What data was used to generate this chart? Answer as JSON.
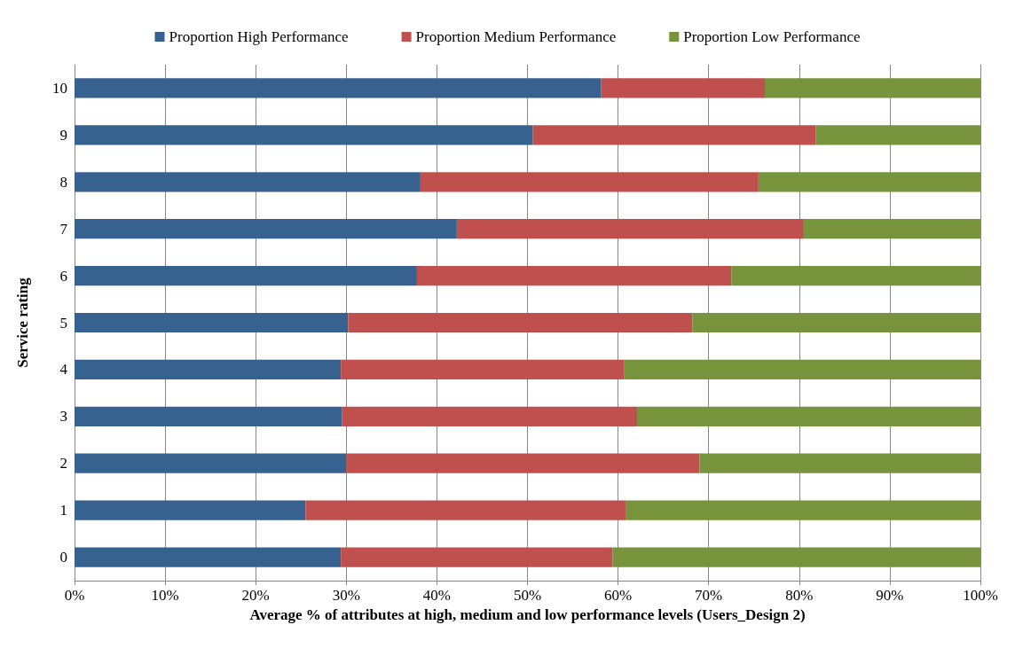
{
  "chart_data": {
    "type": "bar",
    "orientation": "horizontal",
    "stacked": true,
    "xlabel": "Average % of attributes at high, medium and low performance levels (Users_Design 2)",
    "ylabel": "Service rating",
    "categories": [
      "10",
      "9",
      "8",
      "7",
      "6",
      "5",
      "4",
      "3",
      "2",
      "1",
      "0"
    ],
    "series": [
      {
        "name": "Proportion High Performance",
        "color": "#37618f",
        "values": [
          58.1,
          50.6,
          38.1,
          42.2,
          37.8,
          30.2,
          29.4,
          29.5,
          30.0,
          25.5,
          29.4
        ]
      },
      {
        "name": "Proportion Medium Performance",
        "color": "#c0504d",
        "values": [
          18.1,
          31.2,
          37.4,
          38.3,
          34.7,
          38.0,
          31.3,
          32.6,
          39.0,
          35.4,
          30.0
        ]
      },
      {
        "name": "Proportion Low Performance",
        "color": "#77933c",
        "values": [
          23.8,
          18.2,
          24.5,
          19.5,
          27.5,
          31.8,
          39.3,
          37.9,
          31.0,
          39.1,
          40.6
        ]
      }
    ],
    "xlim": [
      0,
      100
    ],
    "xticks": [
      {
        "value": 0,
        "label": "0%"
      },
      {
        "value": 10,
        "label": "10%"
      },
      {
        "value": 20,
        "label": "20%"
      },
      {
        "value": 30,
        "label": "30%"
      },
      {
        "value": 40,
        "label": "40%"
      },
      {
        "value": 50,
        "label": "50%"
      },
      {
        "value": 60,
        "label": "60%"
      },
      {
        "value": 70,
        "label": "70%"
      },
      {
        "value": 80,
        "label": "80%"
      },
      {
        "value": 90,
        "label": "90%"
      },
      {
        "value": 100,
        "label": "100%"
      }
    ],
    "grid": "x",
    "legend": "top"
  }
}
